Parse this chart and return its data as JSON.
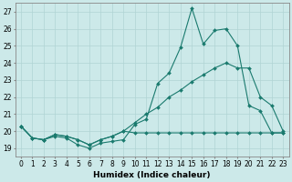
{
  "xlabel": "Humidex (Indice chaleur)",
  "xlim": [
    -0.5,
    23.5
  ],
  "ylim": [
    18.5,
    27.5
  ],
  "yticks": [
    19,
    20,
    21,
    22,
    23,
    24,
    25,
    26,
    27
  ],
  "xticks": [
    0,
    1,
    2,
    3,
    4,
    5,
    6,
    7,
    8,
    9,
    10,
    11,
    12,
    13,
    14,
    15,
    16,
    17,
    18,
    19,
    20,
    21,
    22,
    23
  ],
  "bg_color": "#cce9e9",
  "grid_color": "#b0d4d4",
  "line_color": "#1a7a6e",
  "line1_y": [
    20.3,
    19.6,
    19.5,
    19.7,
    19.6,
    19.2,
    19.0,
    19.3,
    19.4,
    19.5,
    20.4,
    20.7,
    22.8,
    23.4,
    24.9,
    27.2,
    25.1,
    25.9,
    26.0,
    25.0,
    21.5,
    21.2,
    19.9,
    19.9
  ],
  "line2_y": [
    20.3,
    19.6,
    19.5,
    19.8,
    19.7,
    19.5,
    19.2,
    19.5,
    19.7,
    20.0,
    20.5,
    21.0,
    21.4,
    22.0,
    22.4,
    22.9,
    23.3,
    23.7,
    24.0,
    23.7,
    23.7,
    22.0,
    21.5,
    20.0
  ],
  "line3_y": [
    20.3,
    19.6,
    19.5,
    19.8,
    19.7,
    19.5,
    19.2,
    19.5,
    19.7,
    20.0,
    19.9,
    19.9,
    19.9,
    19.9,
    19.9,
    19.9,
    19.9,
    19.9,
    19.9,
    19.9,
    19.9,
    19.9,
    19.9,
    19.9
  ],
  "markersize": 2.0,
  "linewidth": 0.8,
  "xlabel_fontsize": 6.5,
  "tick_fontsize": 5.5
}
